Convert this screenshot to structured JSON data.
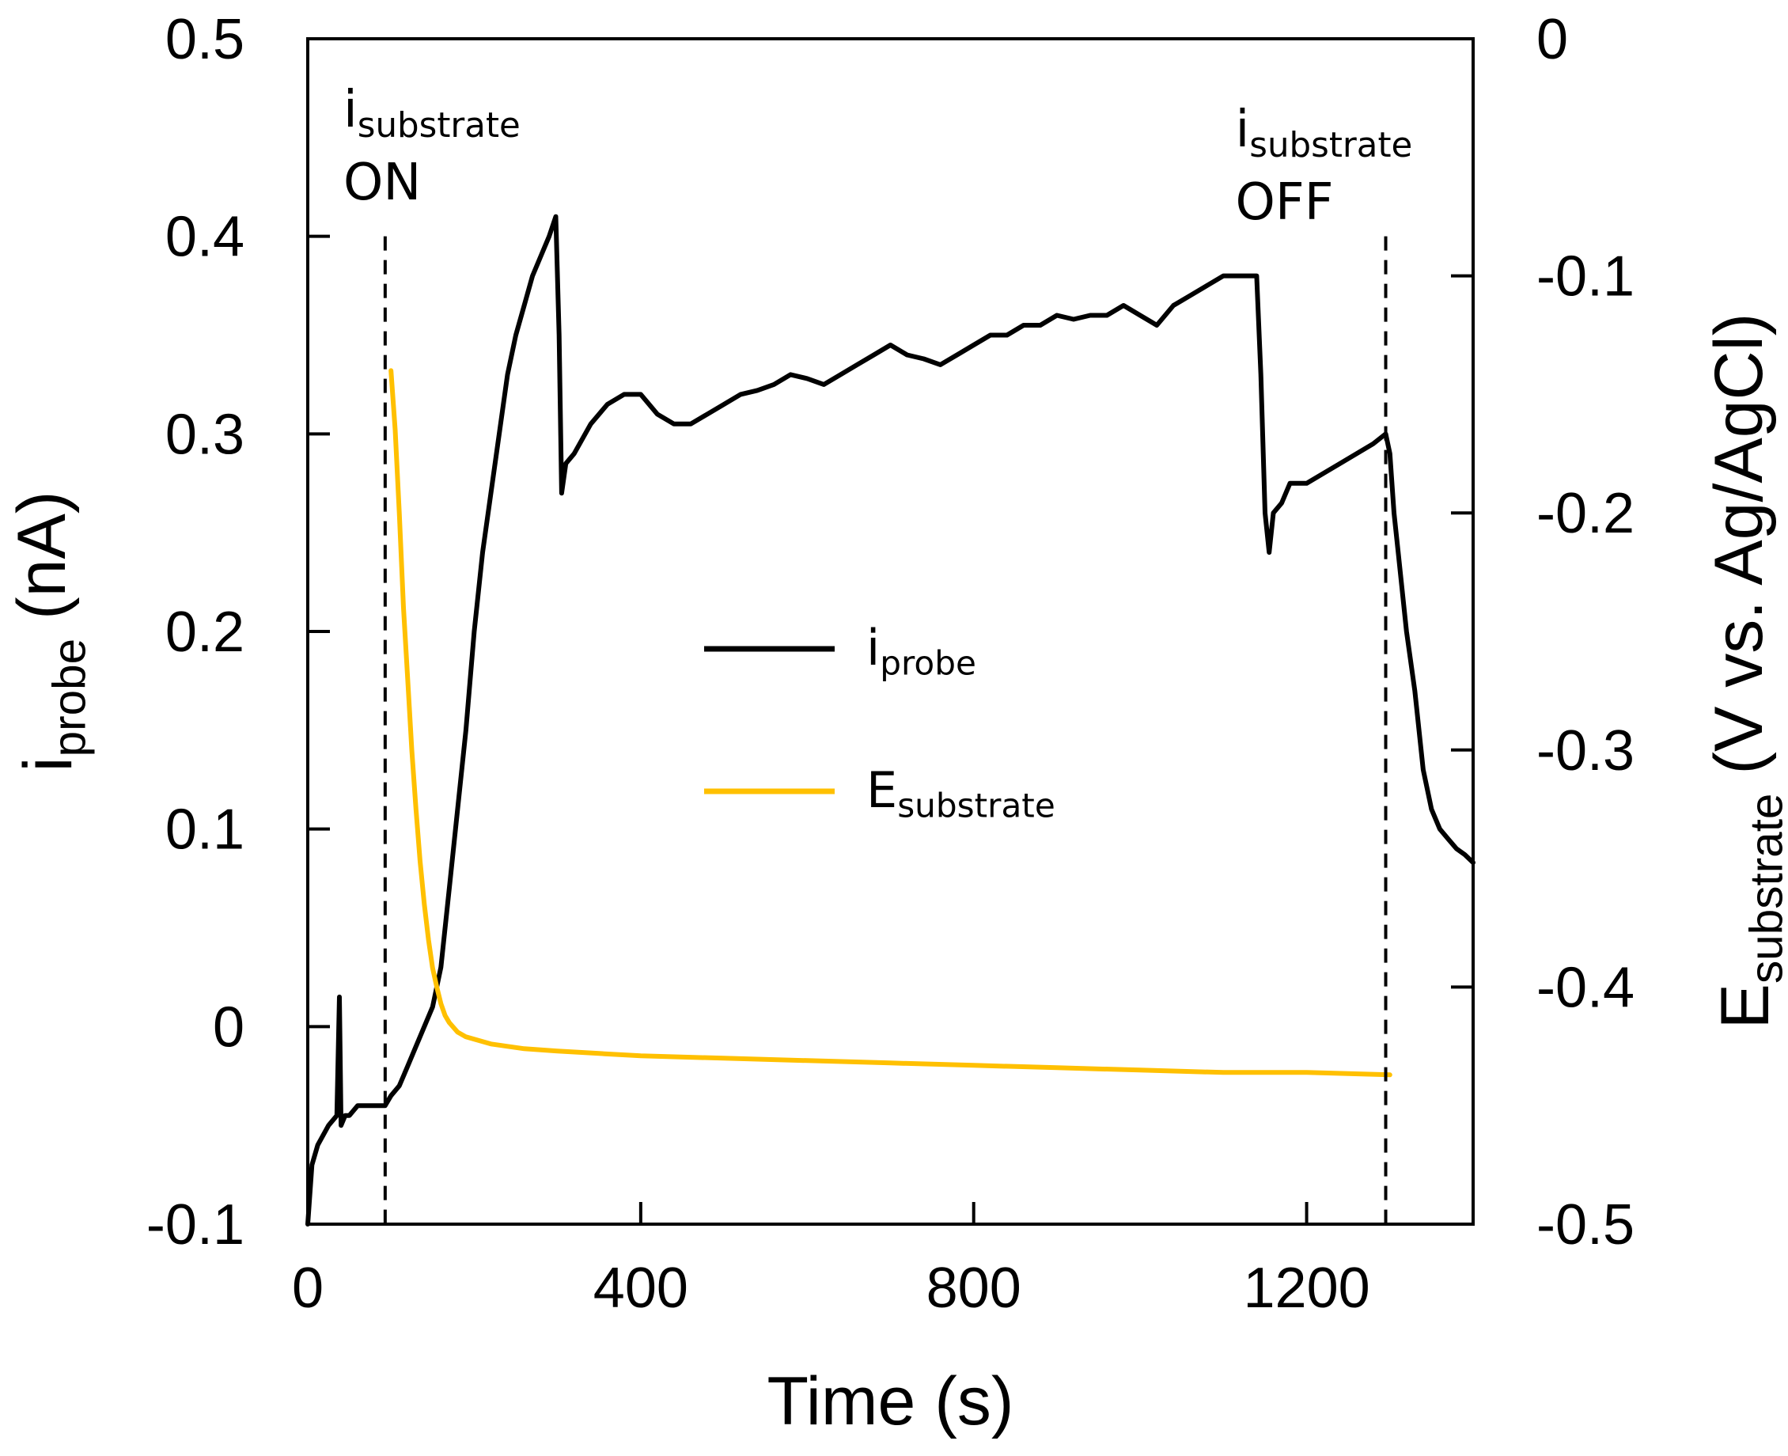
{
  "chart_data": {
    "type": "line",
    "title": "",
    "xlabel": "Time (s)",
    "ylabel_left": {
      "base": "i",
      "sub": "probe",
      "unit": " (nA)"
    },
    "ylabel_right": {
      "base": "E",
      "sub": "substrate",
      "unit": " (V vs. Ag/AgCl)"
    },
    "xlim": [
      0,
      1400
    ],
    "ylim_left": [
      -0.1,
      0.5
    ],
    "ylim_right": [
      -0.5,
      0
    ],
    "x_ticks": [
      0,
      400,
      800,
      1200
    ],
    "x_tick_labels": [
      "0",
      "400",
      "800",
      "1200"
    ],
    "y_left_ticks": [
      -0.1,
      0,
      0.1,
      0.2,
      0.3,
      0.4,
      0.5
    ],
    "y_left_tick_labels": [
      "-0.1",
      "0",
      "0.1",
      "0.2",
      "0.3",
      "0.4",
      "0.5"
    ],
    "y_right_ticks": [
      -0.5,
      -0.4,
      -0.3,
      -0.2,
      -0.1,
      0
    ],
    "y_right_tick_labels": [
      "-0.5",
      "-0.4",
      "-0.3",
      "-0.2",
      "-0.1",
      "0"
    ],
    "grid": false,
    "legend_position": "center",
    "annotations": [
      {
        "x": 93,
        "base": "i",
        "sub": "substrate",
        "line2": "ON"
      },
      {
        "x": 1295,
        "base": "i",
        "sub": "substrate",
        "line2": "OFF"
      }
    ],
    "series": [
      {
        "name": "i_probe",
        "label_base": "i",
        "label_sub": "probe",
        "axis": "left",
        "color": "#000000",
        "x": [
          0,
          5,
          12,
          25,
          35,
          38,
          40,
          45,
          50,
          60,
          75,
          90,
          93,
          100,
          110,
          120,
          130,
          150,
          160,
          170,
          180,
          190,
          200,
          210,
          220,
          230,
          240,
          250,
          260,
          270,
          280,
          290,
          298,
          302,
          305,
          310,
          320,
          340,
          360,
          380,
          400,
          420,
          440,
          460,
          480,
          500,
          520,
          540,
          560,
          580,
          600,
          620,
          640,
          660,
          680,
          700,
          720,
          740,
          760,
          780,
          800,
          820,
          840,
          860,
          880,
          900,
          920,
          940,
          960,
          980,
          1000,
          1020,
          1040,
          1060,
          1080,
          1100,
          1120,
          1140,
          1145,
          1150,
          1155,
          1160,
          1170,
          1180,
          1200,
          1220,
          1240,
          1260,
          1280,
          1295,
          1300,
          1305,
          1310,
          1320,
          1330,
          1340,
          1350,
          1360,
          1370,
          1380,
          1390,
          1400
        ],
        "values": [
          -0.1,
          -0.07,
          -0.06,
          -0.05,
          -0.045,
          0.015,
          -0.05,
          -0.045,
          -0.045,
          -0.04,
          -0.04,
          -0.04,
          -0.04,
          -0.035,
          -0.03,
          -0.02,
          -0.01,
          0.01,
          0.03,
          0.07,
          0.11,
          0.15,
          0.2,
          0.24,
          0.27,
          0.3,
          0.33,
          0.35,
          0.365,
          0.38,
          0.39,
          0.4,
          0.41,
          0.35,
          0.27,
          0.285,
          0.29,
          0.305,
          0.315,
          0.32,
          0.32,
          0.31,
          0.305,
          0.305,
          0.31,
          0.315,
          0.32,
          0.322,
          0.325,
          0.33,
          0.328,
          0.325,
          0.33,
          0.335,
          0.34,
          0.345,
          0.34,
          0.338,
          0.335,
          0.34,
          0.345,
          0.35,
          0.35,
          0.355,
          0.355,
          0.36,
          0.358,
          0.36,
          0.36,
          0.365,
          0.36,
          0.355,
          0.365,
          0.37,
          0.375,
          0.38,
          0.38,
          0.38,
          0.33,
          0.26,
          0.24,
          0.26,
          0.265,
          0.275,
          0.275,
          0.28,
          0.285,
          0.29,
          0.295,
          0.3,
          0.29,
          0.26,
          0.24,
          0.2,
          0.17,
          0.13,
          0.11,
          0.1,
          0.095,
          0.09,
          0.087,
          0.083
        ]
      },
      {
        "name": "E_substrate",
        "label_base": "E",
        "label_sub": "substrate",
        "axis": "right",
        "color": "#ffc000",
        "x": [
          100,
          105,
          110,
          115,
          120,
          125,
          130,
          135,
          140,
          145,
          150,
          155,
          160,
          165,
          170,
          180,
          190,
          200,
          220,
          240,
          260,
          300,
          350,
          400,
          500,
          600,
          700,
          800,
          900,
          1000,
          1100,
          1200,
          1300
        ],
        "values": [
          -0.14,
          -0.165,
          -0.2,
          -0.24,
          -0.27,
          -0.3,
          -0.325,
          -0.347,
          -0.365,
          -0.38,
          -0.392,
          -0.4,
          -0.407,
          -0.412,
          -0.415,
          -0.419,
          -0.421,
          -0.422,
          -0.424,
          -0.425,
          -0.426,
          -0.427,
          -0.428,
          -0.429,
          -0.43,
          -0.431,
          -0.432,
          -0.433,
          -0.434,
          -0.435,
          -0.436,
          -0.436,
          -0.437
        ]
      }
    ]
  }
}
